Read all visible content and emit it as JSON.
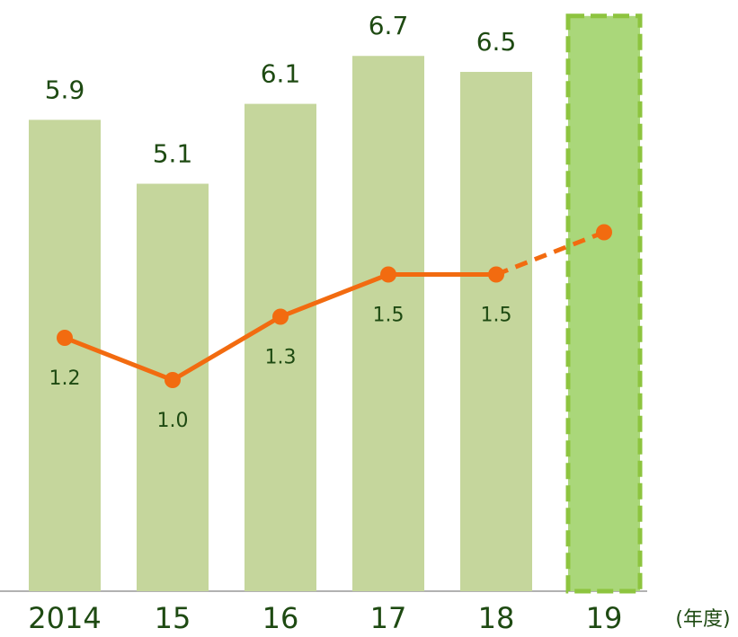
{
  "chart_data": {
    "type": "bar_line",
    "categories": [
      "2014",
      "15",
      "16",
      "17",
      "18",
      "19"
    ],
    "x_unit": "(年度)",
    "series": [
      {
        "name": null,
        "type": "bar",
        "color": "#c5d69c",
        "highlight_color": "#aad77a",
        "highlight_stroke": "#8dc43f",
        "values": [
          5.9,
          5.1,
          6.1,
          6.7,
          6.5,
          7.2
        ],
        "value_labels": [
          "5.9",
          "5.1",
          "6.1",
          "6.7",
          "6.5",
          null
        ]
      },
      {
        "name": null,
        "type": "line",
        "axis": "y2",
        "color": "#f26b10",
        "values": [
          1.2,
          1.0,
          1.3,
          1.5,
          1.5,
          1.7
        ],
        "value_labels": [
          "1.2",
          "1.0",
          "1.3",
          "1.5",
          "1.5",
          null
        ]
      }
    ],
    "projected": [
      false,
      false,
      false,
      false,
      false,
      true
    ],
    "ylim": [
      0,
      7.4
    ],
    "y2lim": [
      0,
      2.8
    ]
  }
}
